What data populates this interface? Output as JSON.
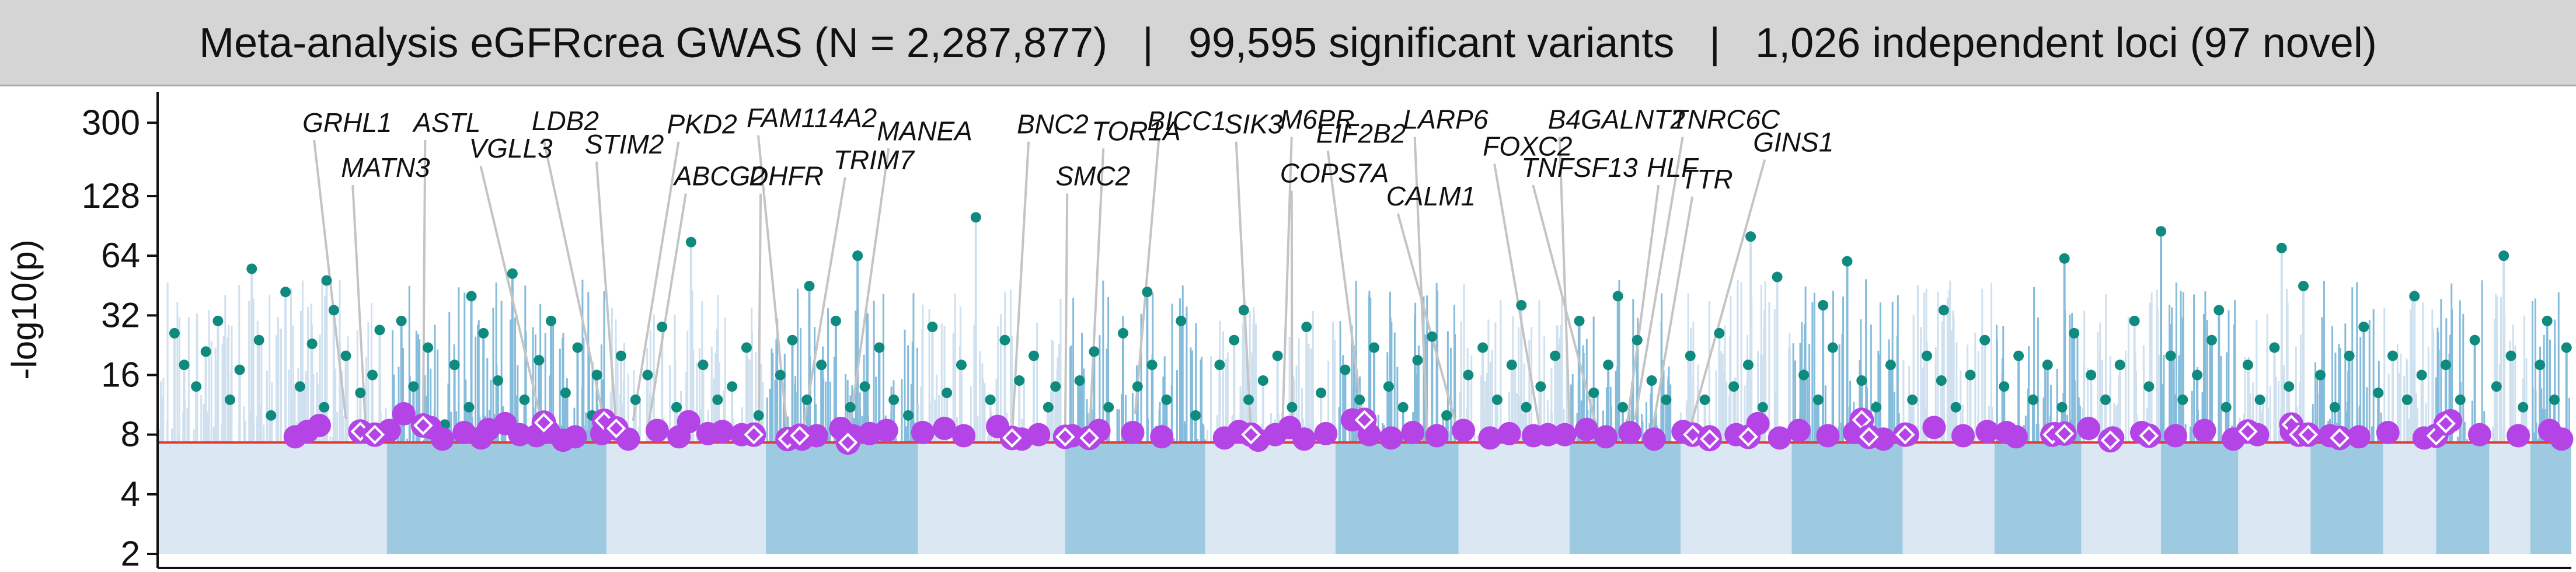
{
  "title": {
    "part1": "Meta-analysis eGFRcrea GWAS (N = 2,287,877)",
    "part2": "99,595 significant variants",
    "part3": "1,026 independent loci (97 novel)",
    "separator": "|"
  },
  "chart_data": {
    "type": "scatter",
    "subtype": "manhattan",
    "title": "Meta-analysis eGFRcrea GWAS (N = 2,287,877) | 99,595 significant variants | 1,026 independent loci (97 novel)",
    "xlabel": "",
    "ylabel": "-log10(p)",
    "y_scale": "log",
    "ylim": [
      1.7,
      400
    ],
    "yticks": [
      2,
      4,
      8,
      16,
      32,
      64,
      128,
      300
    ],
    "significance_threshold": 7.3,
    "grid": false,
    "colors": {
      "chrom_light": "#dbe7f3",
      "chrom_dark": "#9ecae1",
      "lead_known": "#0f8a7e",
      "lead_novel": "#b444e6",
      "threshold_line": "#e53935",
      "leader_line": "#c4c4c4"
    },
    "chromosomes": [
      {
        "chr": 1,
        "start": 0,
        "end": 9.5
      },
      {
        "chr": 2,
        "start": 9.5,
        "end": 18.6
      },
      {
        "chr": 3,
        "start": 18.6,
        "end": 25.2
      },
      {
        "chr": 4,
        "start": 25.2,
        "end": 31.5
      },
      {
        "chr": 5,
        "start": 31.5,
        "end": 37.6
      },
      {
        "chr": 6,
        "start": 37.6,
        "end": 43.4
      },
      {
        "chr": 7,
        "start": 43.4,
        "end": 48.8
      },
      {
        "chr": 8,
        "start": 48.8,
        "end": 53.9
      },
      {
        "chr": 9,
        "start": 53.9,
        "end": 58.5
      },
      {
        "chr": 10,
        "start": 58.5,
        "end": 63.1
      },
      {
        "chr": 11,
        "start": 63.1,
        "end": 67.7
      },
      {
        "chr": 12,
        "start": 67.7,
        "end": 72.3
      },
      {
        "chr": 13,
        "start": 72.3,
        "end": 76.1
      },
      {
        "chr": 14,
        "start": 76.1,
        "end": 79.7
      },
      {
        "chr": 15,
        "start": 79.7,
        "end": 83.0
      },
      {
        "chr": 16,
        "start": 83.0,
        "end": 86.2
      },
      {
        "chr": 17,
        "start": 86.2,
        "end": 89.2
      },
      {
        "chr": 18,
        "start": 89.2,
        "end": 92.2
      },
      {
        "chr": 19,
        "start": 92.2,
        "end": 94.4
      },
      {
        "chr": 20,
        "start": 94.4,
        "end": 96.6
      },
      {
        "chr": 21,
        "start": 96.6,
        "end": 98.3
      },
      {
        "chr": 22,
        "start": 98.3,
        "end": 100
      }
    ],
    "lead_known": [
      [
        0.7,
        26
      ],
      [
        1.1,
        18
      ],
      [
        1.6,
        14
      ],
      [
        2.0,
        21
      ],
      [
        2.5,
        30
      ],
      [
        3.0,
        12
      ],
      [
        3.4,
        17
      ],
      [
        4.2,
        24
      ],
      [
        4.7,
        10
      ],
      [
        5.3,
        42
      ],
      [
        5.9,
        14
      ],
      [
        6.4,
        23
      ],
      [
        6.9,
        11
      ],
      [
        7.3,
        34
      ],
      [
        7.8,
        20
      ],
      [
        8.4,
        13
      ],
      [
        8.9,
        16
      ],
      [
        9.2,
        27
      ],
      [
        10.1,
        30
      ],
      [
        10.6,
        14
      ],
      [
        11.2,
        22
      ],
      [
        11.9,
        9
      ],
      [
        12.3,
        18
      ],
      [
        12.9,
        11
      ],
      [
        13.5,
        26
      ],
      [
        14.1,
        15
      ],
      [
        14.7,
        52
      ],
      [
        15.2,
        12
      ],
      [
        15.8,
        19
      ],
      [
        16.3,
        30
      ],
      [
        16.9,
        13
      ],
      [
        17.4,
        22
      ],
      [
        18.0,
        10
      ],
      [
        19.2,
        20
      ],
      [
        19.8,
        12
      ],
      [
        20.3,
        16
      ],
      [
        20.9,
        28
      ],
      [
        21.5,
        11
      ],
      [
        22.1,
        75
      ],
      [
        22.6,
        18
      ],
      [
        23.2,
        12
      ],
      [
        23.8,
        14
      ],
      [
        24.4,
        22
      ],
      [
        24.9,
        10
      ],
      [
        25.8,
        16
      ],
      [
        26.3,
        24
      ],
      [
        26.9,
        12
      ],
      [
        27.5,
        18
      ],
      [
        28.1,
        30
      ],
      [
        28.7,
        11
      ],
      [
        29.3,
        14
      ],
      [
        29.9,
        22
      ],
      [
        30.5,
        12
      ],
      [
        31.1,
        10
      ],
      [
        32.1,
        28
      ],
      [
        32.7,
        13
      ],
      [
        33.3,
        18
      ],
      [
        33.9,
        100
      ],
      [
        34.5,
        12
      ],
      [
        35.1,
        24
      ],
      [
        35.7,
        15
      ],
      [
        36.3,
        20
      ],
      [
        36.9,
        11
      ],
      [
        38.2,
        15
      ],
      [
        38.8,
        21
      ],
      [
        39.4,
        11
      ],
      [
        40.0,
        26
      ],
      [
        40.6,
        14
      ],
      [
        41.2,
        18
      ],
      [
        41.8,
        12
      ],
      [
        42.4,
        30
      ],
      [
        43.0,
        10
      ],
      [
        44.0,
        18
      ],
      [
        44.6,
        24
      ],
      [
        45.2,
        12
      ],
      [
        45.8,
        15
      ],
      [
        46.4,
        20
      ],
      [
        47.0,
        11
      ],
      [
        47.6,
        28
      ],
      [
        48.2,
        13
      ],
      [
        49.2,
        17
      ],
      [
        49.8,
        12
      ],
      [
        50.4,
        22
      ],
      [
        51.0,
        14
      ],
      [
        51.6,
        11
      ],
      [
        52.2,
        19
      ],
      [
        52.8,
        25
      ],
      [
        53.4,
        10
      ],
      [
        54.3,
        16
      ],
      [
        54.9,
        22
      ],
      [
        55.5,
        12
      ],
      [
        56.1,
        18
      ],
      [
        56.7,
        11
      ],
      [
        57.3,
        14
      ],
      [
        57.9,
        20
      ],
      [
        58.9,
        30
      ],
      [
        59.5,
        13
      ],
      [
        60.1,
        18
      ],
      [
        60.7,
        11
      ],
      [
        61.3,
        24
      ],
      [
        61.9,
        15
      ],
      [
        62.5,
        12
      ],
      [
        63.5,
        20
      ],
      [
        64.1,
        12
      ],
      [
        64.7,
        26
      ],
      [
        65.3,
        14
      ],
      [
        65.9,
        18
      ],
      [
        66.5,
        11
      ],
      [
        67.1,
        50
      ],
      [
        68.2,
        16
      ],
      [
        68.8,
        12
      ],
      [
        69.4,
        22
      ],
      [
        70.0,
        60
      ],
      [
        70.6,
        15
      ],
      [
        71.2,
        11
      ],
      [
        71.8,
        18
      ],
      [
        72.7,
        12
      ],
      [
        73.3,
        20
      ],
      [
        73.9,
        15
      ],
      [
        74.5,
        11
      ],
      [
        75.1,
        16
      ],
      [
        75.7,
        24
      ],
      [
        76.5,
        14
      ],
      [
        77.1,
        20
      ],
      [
        77.7,
        12
      ],
      [
        78.3,
        18
      ],
      [
        78.9,
        11
      ],
      [
        79.4,
        26
      ],
      [
        80.1,
        16
      ],
      [
        80.7,
        12
      ],
      [
        81.3,
        18
      ],
      [
        81.9,
        30
      ],
      [
        82.5,
        14
      ],
      [
        83.4,
        20
      ],
      [
        83.9,
        12
      ],
      [
        84.5,
        16
      ],
      [
        85.1,
        24
      ],
      [
        85.7,
        11
      ],
      [
        86.6,
        18
      ],
      [
        87.1,
        12
      ],
      [
        87.7,
        22
      ],
      [
        88.3,
        14
      ],
      [
        88.9,
        45
      ],
      [
        89.6,
        16
      ],
      [
        90.2,
        11
      ],
      [
        90.8,
        20
      ],
      [
        91.4,
        28
      ],
      [
        92.0,
        13
      ],
      [
        92.6,
        20
      ],
      [
        93.2,
        12
      ],
      [
        93.8,
        16
      ],
      [
        94.8,
        18
      ],
      [
        95.4,
        12
      ],
      [
        96.0,
        24
      ],
      [
        96.9,
        14
      ],
      [
        97.5,
        20
      ],
      [
        98.0,
        11
      ],
      [
        98.7,
        18
      ],
      [
        99.3,
        12
      ],
      [
        99.8,
        22
      ],
      [
        3.9,
        55
      ],
      [
        7.0,
        48
      ],
      [
        13.0,
        40
      ],
      [
        18.2,
        16
      ],
      [
        27.0,
        45
      ],
      [
        29.0,
        64
      ],
      [
        37.2,
        14
      ],
      [
        41.0,
        42
      ],
      [
        45.0,
        34
      ],
      [
        56.5,
        36
      ],
      [
        60.5,
        40
      ],
      [
        66.0,
        80
      ],
      [
        69.0,
        36
      ],
      [
        74.0,
        34
      ],
      [
        79.0,
        62
      ],
      [
        83.0,
        85
      ],
      [
        85.4,
        34
      ],
      [
        88.0,
        70
      ],
      [
        93.5,
        40
      ],
      [
        97.2,
        64
      ],
      [
        99.0,
        30
      ]
    ],
    "lead_novel": [
      [
        5.7,
        7.8
      ],
      [
        6.2,
        8.3
      ],
      [
        6.7,
        8.9
      ],
      [
        9.6,
        8.4
      ],
      [
        10.2,
        10.2
      ],
      [
        11.3,
        8.7
      ],
      [
        12.7,
        8.2
      ],
      [
        13.4,
        7.7
      ],
      [
        13.7,
        8.5
      ],
      [
        14.4,
        9.1
      ],
      [
        15.0,
        8.0
      ],
      [
        15.7,
        7.9
      ],
      [
        16.2,
        8.3
      ],
      [
        16.8,
        7.5
      ],
      [
        17.3,
        7.8
      ],
      [
        18.4,
        8.1
      ],
      [
        19.5,
        7.6
      ],
      [
        20.7,
        8.4
      ],
      [
        21.6,
        7.8
      ],
      [
        22.0,
        9.3
      ],
      [
        22.8,
        8.1
      ],
      [
        23.4,
        8.3
      ],
      [
        24.2,
        8.0
      ],
      [
        26.7,
        7.6
      ],
      [
        27.3,
        7.9
      ],
      [
        28.3,
        8.6
      ],
      [
        28.8,
        7.9
      ],
      [
        29.5,
        8.1
      ],
      [
        30.2,
        8.4
      ],
      [
        31.7,
        8.2
      ],
      [
        33.4,
        7.9
      ],
      [
        34.8,
        8.8
      ],
      [
        35.8,
        7.6
      ],
      [
        36.5,
        8.0
      ],
      [
        37.9,
        7.9
      ],
      [
        39.0,
        8.4
      ],
      [
        40.4,
        8.2
      ],
      [
        41.6,
        7.8
      ],
      [
        44.2,
        7.7
      ],
      [
        44.8,
        8.3
      ],
      [
        45.6,
        7.5
      ],
      [
        46.3,
        8.0
      ],
      [
        46.9,
        8.7
      ],
      [
        47.5,
        7.6
      ],
      [
        48.4,
        8.1
      ],
      [
        49.5,
        9.5
      ],
      [
        50.2,
        8.0
      ],
      [
        51.1,
        7.7
      ],
      [
        52.0,
        8.2
      ],
      [
        53.0,
        7.9
      ],
      [
        54.1,
        8.4
      ],
      [
        55.2,
        7.7
      ],
      [
        56.0,
        8.1
      ],
      [
        57.0,
        7.9
      ],
      [
        58.3,
        8.0
      ],
      [
        59.2,
        8.5
      ],
      [
        60.0,
        7.8
      ],
      [
        61.0,
        8.2
      ],
      [
        62.0,
        7.6
      ],
      [
        63.2,
        8.3
      ],
      [
        64.3,
        7.8
      ],
      [
        65.4,
        8.0
      ],
      [
        66.3,
        9.1
      ],
      [
        67.2,
        7.7
      ],
      [
        68.0,
        8.4
      ],
      [
        69.2,
        7.9
      ],
      [
        70.3,
        8.2
      ],
      [
        71.5,
        7.6
      ],
      [
        72.5,
        8.0
      ],
      [
        73.6,
        8.7
      ],
      [
        74.8,
        7.9
      ],
      [
        75.8,
        8.3
      ],
      [
        77.0,
        7.8
      ],
      [
        78.6,
        8.1
      ],
      [
        80.0,
        8.6
      ],
      [
        81.0,
        7.7
      ],
      [
        82.2,
        8.2
      ],
      [
        83.6,
        7.9
      ],
      [
        84.8,
        8.4
      ],
      [
        86.0,
        7.6
      ],
      [
        87.0,
        8.0
      ],
      [
        88.4,
        8.3
      ],
      [
        90.0,
        7.9
      ],
      [
        91.2,
        7.8
      ],
      [
        92.4,
        8.2
      ],
      [
        93.9,
        7.7
      ],
      [
        95.0,
        9.4
      ],
      [
        96.2,
        8.0
      ],
      [
        97.8,
        7.9
      ],
      [
        99.1,
        8.4
      ],
      [
        99.6,
        7.6
      ],
      [
        11.8,
        7.6
      ],
      [
        32.6,
        8.6
      ],
      [
        57.6,
        8.0
      ],
      [
        76.6,
        8.2
      ]
    ],
    "novel_labeled_markers": [
      [
        8.4,
        8.3
      ],
      [
        9.0,
        8.0
      ],
      [
        11.0,
        8.9
      ],
      [
        16.0,
        9.2
      ],
      [
        18.5,
        9.4
      ],
      [
        19.0,
        8.6
      ],
      [
        24.7,
        8.0
      ],
      [
        26.1,
        7.6
      ],
      [
        26.6,
        7.9
      ],
      [
        28.6,
        7.3
      ],
      [
        35.4,
        7.7
      ],
      [
        37.6,
        7.8
      ],
      [
        38.6,
        7.7
      ],
      [
        45.3,
        8.0
      ],
      [
        50.0,
        9.5
      ],
      [
        63.6,
        8.0
      ],
      [
        64.3,
        7.6
      ],
      [
        65.9,
        7.8
      ],
      [
        70.6,
        9.5
      ],
      [
        70.9,
        7.8
      ],
      [
        72.4,
        8.0
      ],
      [
        78.5,
        8.0
      ],
      [
        79.0,
        8.1
      ],
      [
        80.9,
        7.5
      ],
      [
        82.5,
        7.9
      ],
      [
        86.6,
        8.3
      ],
      [
        88.4,
        9.0
      ],
      [
        88.7,
        8.0
      ],
      [
        89.1,
        8.0
      ],
      [
        90.4,
        7.7
      ],
      [
        94.4,
        7.9
      ],
      [
        94.8,
        9.1
      ]
    ],
    "annotations": [
      {
        "gene": "GRHL1",
        "x": 7.8,
        "y": 9.6,
        "label_x": 6.0,
        "label_y": 270
      },
      {
        "gene": "MATN3",
        "x": 8.6,
        "y": 9.5,
        "label_x": 7.6,
        "label_y": 160
      },
      {
        "gene": "ASTL",
        "x": 11.0,
        "y": 9.2,
        "label_x": 10.6,
        "label_y": 270
      },
      {
        "gene": "VGLL3",
        "x": 15.9,
        "y": 9.4,
        "label_x": 12.9,
        "label_y": 200
      },
      {
        "gene": "LDB2",
        "x": 18.5,
        "y": 9.4,
        "label_x": 15.5,
        "label_y": 275
      },
      {
        "gene": "STIM2",
        "x": 19.0,
        "y": 8.8,
        "label_x": 17.7,
        "label_y": 210
      },
      {
        "gene": "PKD2",
        "x": 19.7,
        "y": 9.4,
        "label_x": 21.1,
        "label_y": 265
      },
      {
        "gene": "ABCG2",
        "x": 20.3,
        "y": 8.4,
        "label_x": 21.4,
        "label_y": 145
      },
      {
        "gene": "DHFR",
        "x": 24.9,
        "y": 8.4,
        "label_x": 24.5,
        "label_y": 145
      },
      {
        "gene": "FAM114A2",
        "x": 26.1,
        "y": 8.0,
        "label_x": 24.4,
        "label_y": 285
      },
      {
        "gene": "TRIM7",
        "x": 26.7,
        "y": 8.0,
        "label_x": 28.0,
        "label_y": 175
      },
      {
        "gene": "MANEA",
        "x": 28.6,
        "y": 7.6,
        "label_x": 29.8,
        "label_y": 245
      },
      {
        "gene": "BNC2",
        "x": 35.4,
        "y": 8.0,
        "label_x": 35.6,
        "label_y": 265
      },
      {
        "gene": "SMC2",
        "x": 37.6,
        "y": 7.8,
        "label_x": 37.2,
        "label_y": 145
      },
      {
        "gene": "TOR1A",
        "x": 38.6,
        "y": 7.8,
        "label_x": 38.7,
        "label_y": 245
      },
      {
        "gene": "BICC1",
        "x": 40.5,
        "y": 10.2,
        "label_x": 41.0,
        "label_y": 275
      },
      {
        "gene": "SIK3",
        "x": 45.3,
        "y": 8.0,
        "label_x": 44.2,
        "label_y": 265
      },
      {
        "gene": "M6PR",
        "x": 46.6,
        "y": 8.6,
        "label_x": 46.5,
        "label_y": 280
      },
      {
        "gene": "COPS7A",
        "x": 47.0,
        "y": 8.0,
        "label_x": 46.5,
        "label_y": 150
      },
      {
        "gene": "EIF2B2",
        "x": 50.0,
        "y": 8.2,
        "label_x": 48.0,
        "label_y": 238
      },
      {
        "gene": "LARP6",
        "x": 52.6,
        "y": 8.2,
        "label_x": 51.6,
        "label_y": 280
      },
      {
        "gene": "CALM1",
        "x": 53.9,
        "y": 8.1,
        "label_x": 50.9,
        "label_y": 115
      },
      {
        "gene": "FOXC2",
        "x": 57.3,
        "y": 8.0,
        "label_x": 54.9,
        "label_y": 205
      },
      {
        "gene": "B4GALNT2",
        "x": 58.5,
        "y": 8.8,
        "label_x": 57.6,
        "label_y": 280
      },
      {
        "gene": "TNFSF13",
        "x": 59.7,
        "y": 8.0,
        "label_x": 56.5,
        "label_y": 160
      },
      {
        "gene": "HLF",
        "x": 60.8,
        "y": 7.6,
        "label_x": 61.7,
        "label_y": 160
      },
      {
        "gene": "TNRC6C",
        "x": 61.2,
        "y": 9.5,
        "label_x": 62.7,
        "label_y": 280
      },
      {
        "gene": "TTR",
        "x": 61.9,
        "y": 8.0,
        "label_x": 63.1,
        "label_y": 140
      },
      {
        "gene": "GINS1",
        "x": 63.4,
        "y": 7.9,
        "label_x": 66.1,
        "label_y": 215
      }
    ]
  }
}
